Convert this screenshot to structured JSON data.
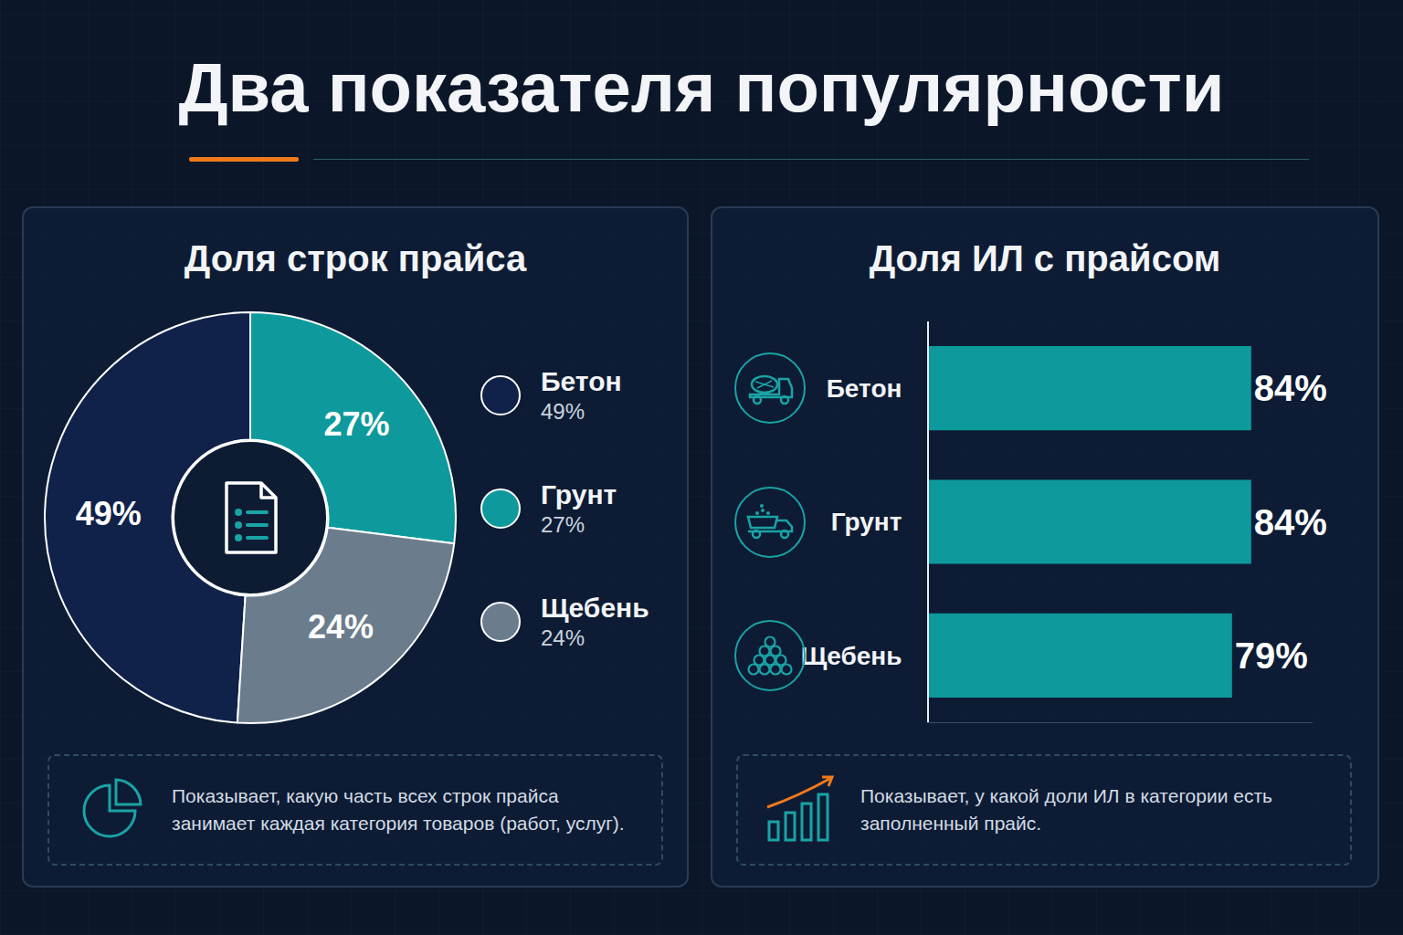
{
  "title": "Два показателя популярности",
  "chart_data": [
    {
      "type": "pie",
      "title": "Доля строк прайса",
      "categories": [
        "Бетон",
        "Грунт",
        "Щебень"
      ],
      "values": [
        49,
        27,
        24
      ],
      "value_labels": [
        "49%",
        "27%",
        "24%"
      ],
      "colors": [
        "#10224a",
        "#0e9a9c",
        "#6b7c8d"
      ],
      "data_labels": true,
      "legend": "right",
      "annotations": [
        "Показывает, какую часть всех строк прайса занимает каждая категория товаров (работ, услуг)."
      ]
    },
    {
      "type": "bar",
      "title": "Доля ИЛ с прайсом",
      "orientation": "horizontal",
      "categories": [
        "Бетон",
        "Грунт",
        "Щебень"
      ],
      "values": [
        84,
        84,
        79
      ],
      "value_labels": [
        "84%",
        "84%",
        "79%"
      ],
      "color": "#0e9a9c",
      "xlim": [
        0,
        100
      ],
      "data_labels": true,
      "tick_labels": "y",
      "grid": false,
      "annotations": [
        "Показывает, у какой доли ИЛ в категории есть заполненный прайс."
      ]
    }
  ]
}
